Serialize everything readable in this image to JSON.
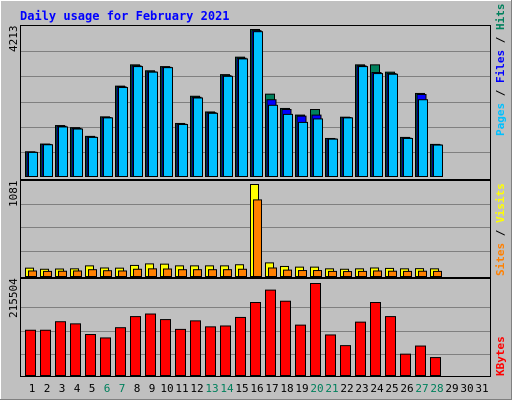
{
  "chart_data": {
    "type": "bar",
    "title": "Daily usage for February 2021",
    "days": [
      "1",
      "2",
      "3",
      "4",
      "5",
      "6",
      "7",
      "8",
      "9",
      "10",
      "11",
      "12",
      "13",
      "14",
      "15",
      "16",
      "17",
      "18",
      "19",
      "20",
      "21",
      "22",
      "23",
      "24",
      "25",
      "26",
      "27",
      "28",
      "29",
      "30",
      "31"
    ],
    "weekend_days": [
      "6",
      "7",
      "13",
      "14",
      "20",
      "21",
      "27",
      "28"
    ],
    "top_panel": {
      "ymax_label": "4213",
      "ymax": 4213,
      "axis_label_parts": [
        "Pages",
        " / ",
        "Files",
        " / ",
        "Hits"
      ],
      "series": [
        {
          "name": "Hits",
          "color": "#00805c",
          "values": [
            710,
            930,
            1460,
            1400,
            1150,
            1710,
            2590,
            3200,
            3030,
            3150,
            1520,
            2300,
            1850,
            2920,
            3420,
            4213,
            2360,
            1950,
            1760,
            1920,
            1090,
            1700,
            3200,
            3200,
            2990,
            1120,
            2380,
            920
          ]
        },
        {
          "name": "Files",
          "color": "#0000ff",
          "values": [
            700,
            920,
            1440,
            1380,
            1130,
            1690,
            2570,
            3170,
            3000,
            3130,
            1500,
            2270,
            1830,
            2890,
            3390,
            4180,
            2200,
            1920,
            1730,
            1760,
            1080,
            1690,
            3170,
            2980,
            2950,
            1100,
            2350,
            910
          ]
        },
        {
          "name": "Pages",
          "color": "#00c0ff",
          "values": [
            690,
            910,
            1420,
            1360,
            1120,
            1680,
            2550,
            3150,
            2990,
            3120,
            1490,
            2250,
            1810,
            2870,
            3370,
            4150,
            2040,
            1780,
            1550,
            1650,
            1070,
            1680,
            3150,
            2950,
            2930,
            1090,
            2200,
            900
          ]
        }
      ]
    },
    "middle_panel": {
      "ymax_label": "1081",
      "ymax": 1081,
      "axis_label_parts": [
        "Sites",
        " / ",
        "Visits"
      ],
      "series": [
        {
          "name": "Visits",
          "color": "#ffff00",
          "values": [
            98,
            85,
            88,
            90,
            125,
            100,
            98,
            130,
            148,
            145,
            125,
            125,
            125,
            125,
            138,
            1081,
            160,
            118,
            110,
            110,
            90,
            85,
            90,
            100,
            95,
            90,
            92,
            90
          ]
        },
        {
          "name": "Sites",
          "color": "#ff8000",
          "values": [
            65,
            60,
            62,
            65,
            80,
            68,
            65,
            85,
            90,
            88,
            80,
            80,
            80,
            80,
            85,
            900,
            100,
            75,
            70,
            70,
            60,
            58,
            60,
            65,
            62,
            60,
            62,
            60
          ]
        }
      ]
    },
    "bottom_panel": {
      "ymax_label": "215504",
      "ymax": 215504,
      "axis_label_parts": [
        "KBytes"
      ],
      "series": [
        {
          "name": "KBytes",
          "color": "#ff0000",
          "values": [
            106000,
            106000,
            126000,
            121000,
            96000,
            88000,
            112000,
            138000,
            144000,
            131000,
            108000,
            128000,
            114000,
            116000,
            136000,
            171000,
            200000,
            174000,
            118000,
            215504,
            95000,
            70000,
            125000,
            171000,
            138000,
            50000,
            69000,
            42000
          ]
        }
      ]
    }
  }
}
